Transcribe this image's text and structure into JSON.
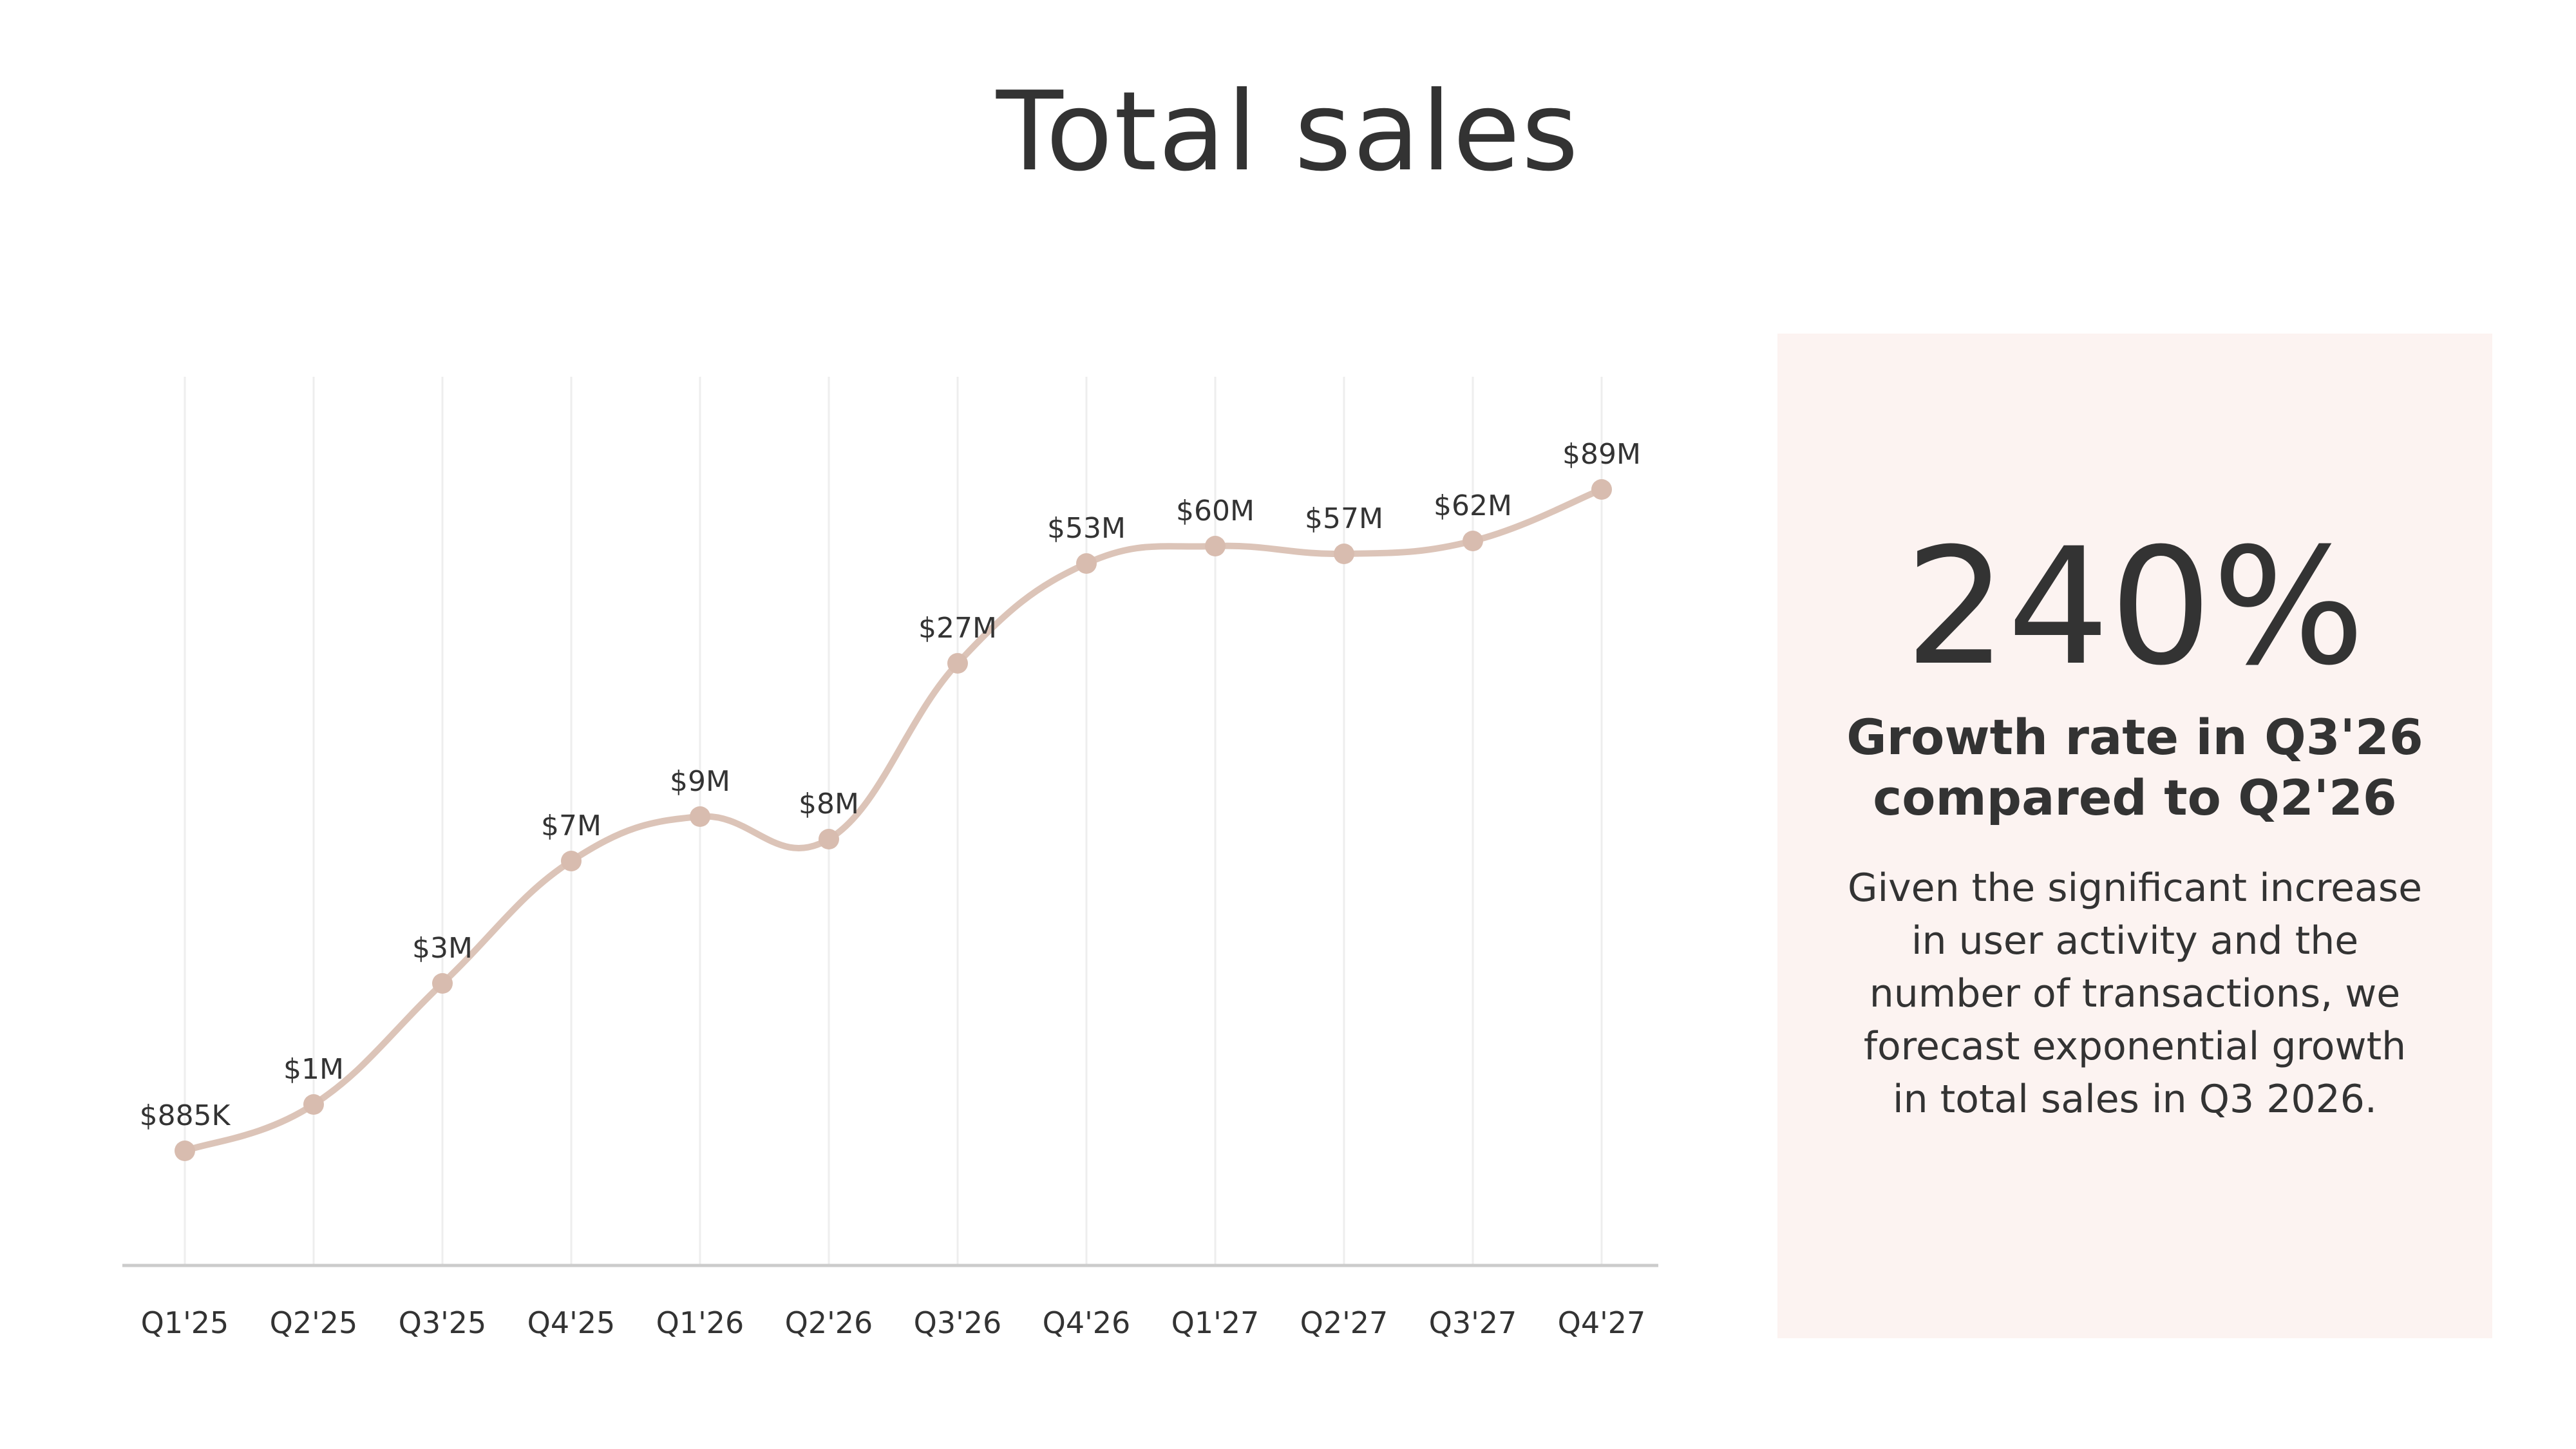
{
  "title": "Total sales",
  "panel": {
    "stat": "240%",
    "subtitle_line1": "Growth rate in Q3'26",
    "subtitle_line2": "compared to Q2'26",
    "body_lines": [
      "Given the significant increase",
      "in user activity and the",
      "number of transactions, we",
      "forecast exponential growth",
      "in total sales in Q3 2026."
    ]
  },
  "colors": {
    "line": "#dcc4b8",
    "marker": "#d8bcaf",
    "panel_bg": "#fcf3f1",
    "grid": "#eeeeee",
    "axis": "#cccccc",
    "text": "#333333"
  },
  "chart_data": {
    "type": "line",
    "categories": [
      "Q1'25",
      "Q2'25",
      "Q3'25",
      "Q4'25",
      "Q1'26",
      "Q2'26",
      "Q3'26",
      "Q4'26",
      "Q1'27",
      "Q2'27",
      "Q3'27",
      "Q4'27"
    ],
    "values": [
      0.885,
      1,
      3,
      7,
      9,
      8,
      27,
      53,
      60,
      57,
      62,
      89
    ],
    "labels": [
      "$885K",
      "$1M",
      "$3M",
      "$7M",
      "$9M",
      "$8M",
      "$27M",
      "$53M",
      "$60M",
      "$57M",
      "$62M",
      "$89M"
    ],
    "scale": "nonlinear",
    "vertical_grid": true,
    "smooth": true
  }
}
